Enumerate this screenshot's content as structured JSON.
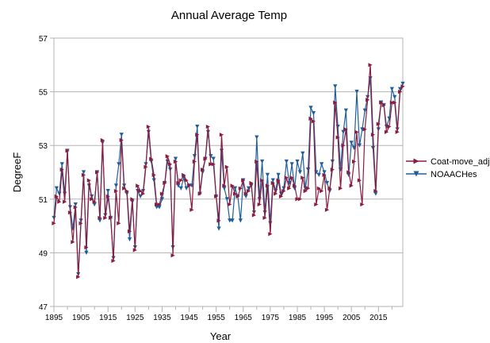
{
  "chart_data": {
    "type": "line",
    "title": "Annual Average Temp",
    "xlabel": "Year",
    "ylabel": "DegreeF",
    "xlim": [
      1895,
      2024
    ],
    "ylim": [
      47,
      57
    ],
    "x_ticks": [
      1895,
      1905,
      1915,
      1925,
      1935,
      1945,
      1955,
      1965,
      1975,
      1985,
      1995,
      2005,
      2015
    ],
    "y_ticks": [
      47,
      49,
      51,
      53,
      55,
      57
    ],
    "grid": "horizontal",
    "legend_position": "right",
    "x_start": 1895,
    "series": [
      {
        "name": "Coat-move_adj",
        "color": "#8b1c3f",
        "marker": "triangle-right",
        "values": [
          50.1,
          51.1,
          50.9,
          52.1,
          50.9,
          52.8,
          50.5,
          49.4,
          50.7,
          48.1,
          50.1,
          51.9,
          49.2,
          51.7,
          51.0,
          50.9,
          52.0,
          50.3,
          53.2,
          50.3,
          51.1,
          50.3,
          48.7,
          51.3,
          50.1,
          53.2,
          51.4,
          51.3,
          49.8,
          51.0,
          49.1,
          51.5,
          51.3,
          51.2,
          52.2,
          53.7,
          52.5,
          51.9,
          50.8,
          50.8,
          51.2,
          51.6,
          52.6,
          52.3,
          48.9,
          52.4,
          51.6,
          51.7,
          51.9,
          51.7,
          51.5,
          50.6,
          52.4,
          53.4,
          51.2,
          52.1,
          52.5,
          53.7,
          52.3,
          52.3,
          51.1,
          50.2,
          53.4,
          51.5,
          52.2,
          50.8,
          51.5,
          51.2,
          51.1,
          51.4,
          51.7,
          51.2,
          51.3,
          51.6,
          50.4,
          52.4,
          50.8,
          51.7,
          50.3,
          51.5,
          49.7,
          51.6,
          51.2,
          51.7,
          51.1,
          51.3,
          51.8,
          51.4,
          51.8,
          51.5,
          51.0,
          51.0,
          51.8,
          51.3,
          51.4,
          54.0,
          53.9,
          50.8,
          51.4,
          51.3,
          51.9,
          50.6,
          51.4,
          52.1,
          54.6,
          53.3,
          51.4,
          53.0,
          53.6,
          52.0,
          51.5,
          52.4,
          53.5,
          51.7,
          50.8,
          53.6,
          54.7,
          56.0,
          53.4,
          51.3,
          53.8,
          54.6,
          54.5,
          53.5,
          53.7,
          54.6,
          54.6,
          53.5,
          55.0,
          55.2
        ]
      },
      {
        "name": "NOAACHes",
        "color": "#1f5f99",
        "marker": "triangle-down",
        "values": [
          50.3,
          51.4,
          51.2,
          52.3,
          51.2,
          52.8,
          50.7,
          49.9,
          50.8,
          48.2,
          50.2,
          52.0,
          49.0,
          51.5,
          51.1,
          50.8,
          52.0,
          50.2,
          53.1,
          50.4,
          51.3,
          50.3,
          48.8,
          51.5,
          52.3,
          53.4,
          51.5,
          51.2,
          49.5,
          50.9,
          49.2,
          51.3,
          51.1,
          51.3,
          52.3,
          53.5,
          52.4,
          51.7,
          50.7,
          50.7,
          51.0,
          51.6,
          52.4,
          52.1,
          49.2,
          52.5,
          51.5,
          51.4,
          51.8,
          51.4,
          51.5,
          51.5,
          52.6,
          53.7,
          51.2,
          52.0,
          52.5,
          53.5,
          52.6,
          52.5,
          51.1,
          49.9,
          52.8,
          51.4,
          51.0,
          50.2,
          50.2,
          51.4,
          51.1,
          50.2,
          51.7,
          51.1,
          51.4,
          51.5,
          50.5,
          53.3,
          51.0,
          52.4,
          50.5,
          51.9,
          50.1,
          51.7,
          51.3,
          51.9,
          51.2,
          51.4,
          52.4,
          51.6,
          52.3,
          51.4,
          52.4,
          52.0,
          52.7,
          51.4,
          52.1,
          54.4,
          54.2,
          52.0,
          51.9,
          52.3,
          52.0,
          51.6,
          51.3,
          52.4,
          55.2,
          53.7,
          52.1,
          53.5,
          54.3,
          51.9,
          53.1,
          52.9,
          55.0,
          53.0,
          53.6,
          54.3,
          54.8,
          55.5,
          52.9,
          51.2,
          53.6,
          54.6,
          54.5,
          53.7,
          54.0,
          55.1,
          54.8,
          53.6,
          55.1,
          55.3
        ]
      }
    ]
  }
}
